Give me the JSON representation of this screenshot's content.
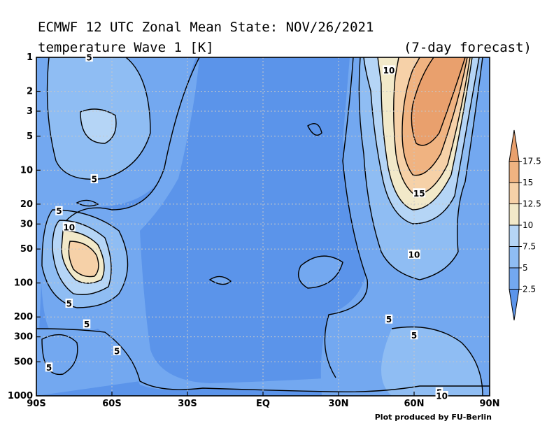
{
  "title_line1": "ECMWF 12 UTC Zonal Mean State: NOV/26/2021",
  "title_line2": "temperature Wave 1 [K]",
  "forecast_note": "(7-day forecast)",
  "credit": "Plot produced by FU-Berlin",
  "chart_data": {
    "type": "contour",
    "xlabel": "",
    "ylabel": "",
    "x_ticks": [
      "90S",
      "60S",
      "30S",
      "EQ",
      "30N",
      "60N",
      "90N"
    ],
    "y_ticks": [
      "1",
      "2",
      "3",
      "5",
      "10",
      "20",
      "30",
      "50",
      "100",
      "200",
      "300",
      "500",
      "1000"
    ],
    "y_scale": "log",
    "xlim": [
      -90,
      90
    ],
    "ylim": [
      1000,
      1
    ],
    "contour_levels": [
      2.5,
      5,
      7.5,
      10,
      12.5,
      15,
      17.5
    ],
    "colorbar_labels": [
      "2.5",
      "5",
      "7.5",
      "10",
      "12.5",
      "15",
      "17.5"
    ],
    "colorbar_colors": [
      "#5b94ea",
      "#73a8f0",
      "#8fbdf3",
      "#b5d5f6",
      "#f2e9c9",
      "#f6d1a8",
      "#f0b381",
      "#e9a06d"
    ],
    "contour_labels": [
      {
        "text": "5",
        "lon": -69,
        "p": 1
      },
      {
        "text": "10",
        "lon": 50,
        "p": 1.3
      },
      {
        "text": "5",
        "lon": -67,
        "p": 12
      },
      {
        "text": "5",
        "lon": -81,
        "p": 23
      },
      {
        "text": "10",
        "lon": -77,
        "p": 32
      },
      {
        "text": "15",
        "lon": 62,
        "p": 16
      },
      {
        "text": "10",
        "lon": 60,
        "p": 56
      },
      {
        "text": "5",
        "lon": -77,
        "p": 152
      },
      {
        "text": "5",
        "lon": -70,
        "p": 232
      },
      {
        "text": "5",
        "lon": -58,
        "p": 400
      },
      {
        "text": "5",
        "lon": -85,
        "p": 560
      },
      {
        "text": "5",
        "lon": 50,
        "p": 210
      },
      {
        "text": "5",
        "lon": 60,
        "p": 290
      },
      {
        "text": "5",
        "lon": 70,
        "p": 930
      },
      {
        "text": "10",
        "lon": 71,
        "p": 1000
      }
    ]
  }
}
